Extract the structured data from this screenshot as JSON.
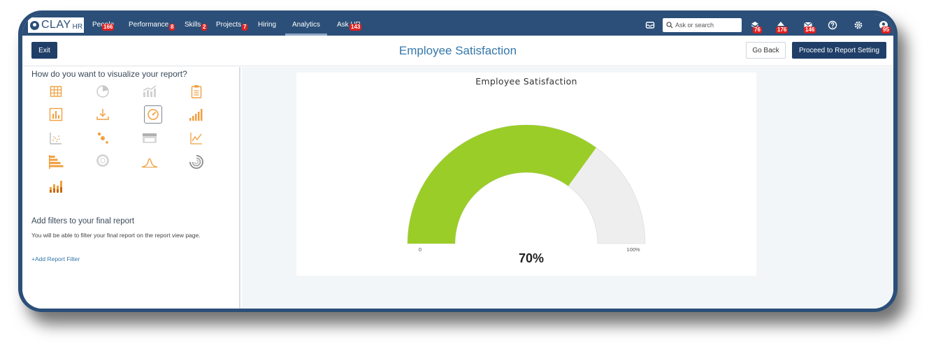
{
  "brand": {
    "name": "CLAY",
    "suffix": "HR"
  },
  "nav": {
    "items": [
      {
        "label": "People",
        "badge": "166"
      },
      {
        "label": "Performance",
        "badge": "8"
      },
      {
        "label": "Skills",
        "badge": "2"
      },
      {
        "label": "Projects",
        "badge": "7"
      },
      {
        "label": "Hiring",
        "badge": ""
      },
      {
        "label": "Analytics",
        "badge": "",
        "active": true
      },
      {
        "label": "Ask HR",
        "badge": "143"
      }
    ],
    "search_placeholder": "Ask or search",
    "icons": [
      {
        "name": "inbox-icon",
        "badge": ""
      },
      {
        "name": "tasks-icon",
        "badge": "76"
      },
      {
        "name": "announcements-icon",
        "badge": "176"
      },
      {
        "name": "mail-icon",
        "badge": "146"
      },
      {
        "name": "help-icon",
        "badge": ""
      },
      {
        "name": "settings-icon",
        "badge": ""
      },
      {
        "name": "profile-icon",
        "badge": "95"
      }
    ]
  },
  "header": {
    "exit_label": "Exit",
    "title": "Employee Satisfaction",
    "back_label": "Go Back",
    "proceed_label": "Proceed to Report Setting"
  },
  "left_panel": {
    "question": "How do you want to visualize your report?",
    "viz_icons": [
      "table-icon",
      "pie-chart-icon",
      "combo-chart-icon",
      "summary-report-icon",
      "bar-chart-icon",
      "download-icon",
      "gauge-icon",
      "step-bar-icon",
      "scatter-plot-icon",
      "bubble-chart-icon",
      "card-icon",
      "line-chart-icon",
      "horizontal-bar-icon",
      "donut-chart-icon",
      "bell-curve-icon",
      "radial-bar-icon",
      "stacked-bar-icon"
    ],
    "selected_viz": "gauge-icon",
    "filters_title": "Add filters to your final report",
    "filters_desc": "You will be able to filter your final report on the report view page.",
    "add_filter_label": "+Add Report Filter"
  },
  "chart_data": {
    "type": "gauge",
    "title": "Employee Satisfaction",
    "value": 70,
    "min": 0,
    "max": 100,
    "value_label": "70%",
    "min_label": "0",
    "max_label": "100%",
    "colors": {
      "fill": "#9acd27",
      "track": "#eeeeee"
    }
  }
}
